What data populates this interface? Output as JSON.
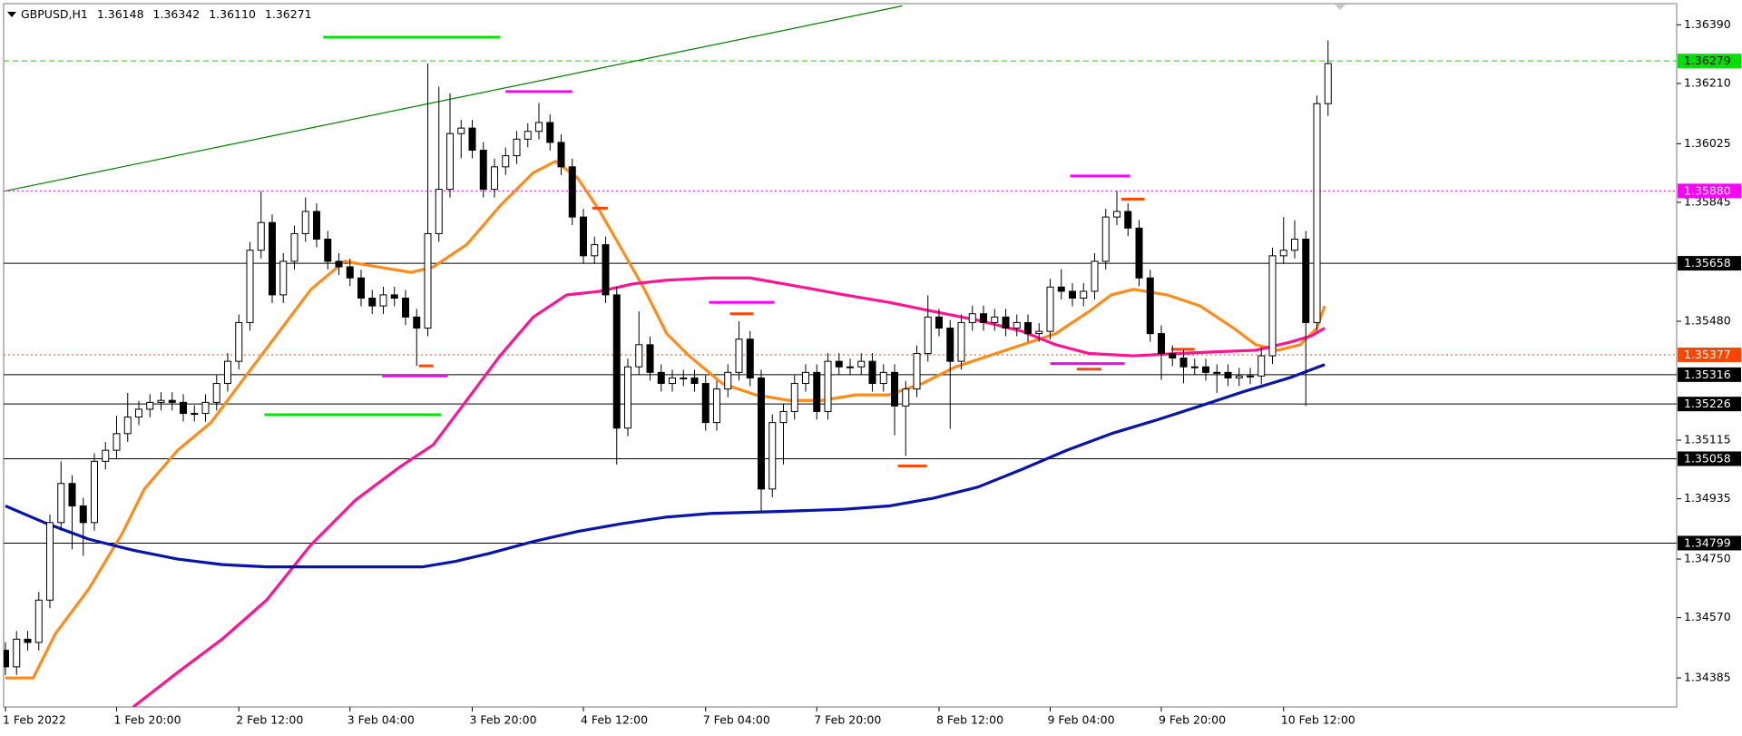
{
  "chart_data": {
    "type": "candlestick",
    "symbol": "GBPUSD,H1",
    "header": {
      "values": [
        1.36148,
        1.36342,
        1.3611,
        1.36271
      ],
      "value_labels": [
        "1.36148",
        "1.36342",
        "1.36110",
        "1.36271"
      ]
    },
    "categories": [
      "1 Feb 2022",
      null,
      null,
      null,
      null,
      null,
      null,
      null,
      null,
      null,
      "1 Feb 20:00",
      null,
      null,
      null,
      null,
      null,
      null,
      null,
      null,
      null,
      null,
      "2 Feb 12:00",
      null,
      null,
      null,
      null,
      null,
      null,
      null,
      null,
      null,
      "3 Feb 04:00",
      null,
      null,
      null,
      null,
      null,
      null,
      null,
      null,
      null,
      null,
      "3 Feb 20:00",
      null,
      null,
      null,
      null,
      null,
      null,
      null,
      null,
      null,
      "4 Feb 12:00",
      null,
      null,
      null,
      null,
      null,
      null,
      null,
      null,
      null,
      null,
      "7 Feb 04:00",
      null,
      null,
      null,
      null,
      null,
      null,
      null,
      null,
      null,
      "7 Feb 20:00",
      null,
      null,
      null,
      null,
      null,
      null,
      null,
      null,
      null,
      null,
      "8 Feb 12:00",
      null,
      null,
      null,
      null,
      null,
      null,
      null,
      null,
      null,
      "9 Feb 04:00",
      null,
      null,
      null,
      null,
      null,
      null,
      null,
      null,
      null,
      "9 Feb 20:00",
      null,
      null,
      null,
      null,
      null,
      null,
      null,
      null,
      null,
      null,
      "10 Feb 12:00",
      null,
      null,
      null,
      null
    ],
    "open": [
      1.3447,
      1.34419,
      1.34504,
      1.34494,
      1.34624,
      1.34862,
      1.34982,
      1.34913,
      1.34862,
      1.3505,
      1.35084,
      1.35135,
      1.35186,
      1.3521,
      1.35231,
      1.35237,
      1.35231,
      1.35197,
      1.35197,
      1.35231,
      1.35289,
      1.35357,
      1.35476,
      1.35698,
      1.35783,
      1.35561,
      1.35664,
      1.35749,
      1.35817,
      1.35732,
      1.35664,
      1.35647,
      1.35613,
      1.35551,
      1.35527,
      1.35561,
      1.35551,
      1.35493,
      1.35459,
      1.35749,
      1.35885,
      1.36056,
      1.36073,
      1.36005,
      1.35885,
      1.35954,
      1.35988,
      1.36039,
      1.36063,
      1.3609,
      1.36029,
      1.35954,
      1.358,
      1.35681,
      1.35715,
      1.35561,
      1.35152,
      1.3534,
      1.35408,
      1.35323,
      1.35289,
      1.35306,
      1.35306,
      1.35289,
      1.35169,
      1.35272,
      1.35323,
      1.35425,
      1.35306,
      1.34965,
      1.35169,
      1.35203,
      1.35289,
      1.35323,
      1.35203,
      1.35357,
      1.3534,
      1.3534,
      1.35357,
      1.35289,
      1.35323,
      1.3522,
      1.35272,
      1.35381,
      1.35493,
      1.35459,
      1.35357,
      1.35476,
      1.35503,
      1.35476,
      1.35493,
      1.35459,
      1.35476,
      1.35442,
      1.35449,
      1.35585,
      1.35572,
      1.35551,
      1.35572,
      1.35664,
      1.358,
      1.35817,
      1.35766,
      1.35613,
      1.35442,
      1.35381,
      1.35367,
      1.3534,
      1.3534,
      1.35323,
      1.35323,
      1.35306,
      1.35312,
      1.35312,
      1.35374,
      1.35681,
      1.35698,
      1.35732,
      1.35476,
      1.36148
    ],
    "high": [
      1.34495,
      1.34529,
      1.34529,
      1.34649,
      1.34887,
      1.3505,
      1.35007,
      1.34938,
      1.35075,
      1.35109,
      1.3519,
      1.3526,
      1.35235,
      1.35256,
      1.35262,
      1.35262,
      1.35256,
      1.35222,
      1.35256,
      1.35314,
      1.35382,
      1.35501,
      1.35723,
      1.3588,
      1.35808,
      1.35689,
      1.35774,
      1.3586,
      1.35842,
      1.35757,
      1.35689,
      1.35672,
      1.35638,
      1.35576,
      1.35586,
      1.35586,
      1.35576,
      1.35518,
      1.36271,
      1.362,
      1.3618,
      1.36098,
      1.36098,
      1.3603,
      1.35979,
      1.36013,
      1.36064,
      1.36088,
      1.3615,
      1.36115,
      1.36054,
      1.35979,
      1.35825,
      1.3574,
      1.3574,
      1.35586,
      1.35365,
      1.3551,
      1.35433,
      1.35348,
      1.35331,
      1.35331,
      1.35331,
      1.35314,
      1.35297,
      1.35348,
      1.3548,
      1.3545,
      1.35331,
      1.35194,
      1.35228,
      1.35314,
      1.35348,
      1.35348,
      1.35382,
      1.35382,
      1.35365,
      1.35382,
      1.35382,
      1.35348,
      1.35348,
      1.35297,
      1.35406,
      1.3556,
      1.35518,
      1.35484,
      1.35501,
      1.35528,
      1.35528,
      1.35518,
      1.35518,
      1.35501,
      1.35501,
      1.35474,
      1.3561,
      1.3564,
      1.35597,
      1.35597,
      1.35689,
      1.35825,
      1.3588,
      1.35842,
      1.35791,
      1.35638,
      1.35467,
      1.35406,
      1.35392,
      1.35365,
      1.35365,
      1.35348,
      1.35348,
      1.35337,
      1.35337,
      1.35399,
      1.35706,
      1.358,
      1.3579,
      1.35757,
      1.36173,
      1.36342
    ],
    "low": [
      1.34394,
      1.34394,
      1.34469,
      1.34469,
      1.34599,
      1.34837,
      1.3478,
      1.3476,
      1.34837,
      1.35025,
      1.35059,
      1.3511,
      1.35161,
      1.35185,
      1.35206,
      1.35206,
      1.35172,
      1.35172,
      1.35172,
      1.35206,
      1.35264,
      1.35332,
      1.35451,
      1.35673,
      1.35536,
      1.35536,
      1.35639,
      1.35724,
      1.35707,
      1.35639,
      1.35622,
      1.35588,
      1.35526,
      1.35502,
      1.35502,
      1.35526,
      1.35468,
      1.35343,
      1.35434,
      1.35724,
      1.3586,
      1.3598,
      1.3598,
      1.3586,
      1.3586,
      1.35929,
      1.35963,
      1.36014,
      1.36038,
      1.36004,
      1.35929,
      1.35775,
      1.35656,
      1.35656,
      1.35536,
      1.3504,
      1.35127,
      1.35315,
      1.35298,
      1.35264,
      1.35264,
      1.35281,
      1.35264,
      1.35144,
      1.35144,
      1.35247,
      1.35298,
      1.35281,
      1.34896,
      1.3494,
      1.3504,
      1.35178,
      1.35264,
      1.35178,
      1.35178,
      1.35315,
      1.35315,
      1.35315,
      1.35264,
      1.35264,
      1.3513,
      1.35067,
      1.35247,
      1.35356,
      1.35434,
      1.3515,
      1.35332,
      1.35451,
      1.35451,
      1.35451,
      1.35434,
      1.35434,
      1.35417,
      1.35417,
      1.35424,
      1.35547,
      1.35526,
      1.35526,
      1.35547,
      1.35639,
      1.35775,
      1.35741,
      1.35588,
      1.35417,
      1.353,
      1.35342,
      1.3529,
      1.35315,
      1.35298,
      1.3526,
      1.35281,
      1.35281,
      1.35287,
      1.35287,
      1.35349,
      1.35656,
      1.35673,
      1.3522,
      1.35451,
      1.3611
    ],
    "close": [
      1.34419,
      1.34504,
      1.34494,
      1.34624,
      1.34862,
      1.34982,
      1.34913,
      1.34862,
      1.3505,
      1.35084,
      1.35135,
      1.35186,
      1.3521,
      1.35231,
      1.35237,
      1.35231,
      1.35197,
      1.35197,
      1.35231,
      1.35289,
      1.35357,
      1.35476,
      1.35698,
      1.35783,
      1.35561,
      1.35664,
      1.35749,
      1.35817,
      1.35732,
      1.35664,
      1.35647,
      1.35613,
      1.35551,
      1.35527,
      1.35561,
      1.35551,
      1.35493,
      1.35459,
      1.35749,
      1.35885,
      1.36056,
      1.36073,
      1.36005,
      1.35885,
      1.35954,
      1.35988,
      1.36039,
      1.36063,
      1.3609,
      1.36029,
      1.35954,
      1.358,
      1.35681,
      1.35715,
      1.35561,
      1.35152,
      1.3534,
      1.35408,
      1.35323,
      1.35289,
      1.35306,
      1.35306,
      1.35289,
      1.35169,
      1.35272,
      1.35323,
      1.35425,
      1.35306,
      1.34965,
      1.35169,
      1.35203,
      1.35289,
      1.35323,
      1.35203,
      1.35357,
      1.3534,
      1.3534,
      1.35357,
      1.35289,
      1.35323,
      1.3522,
      1.35272,
      1.35381,
      1.35493,
      1.35459,
      1.35357,
      1.35476,
      1.35503,
      1.35476,
      1.35493,
      1.35459,
      1.35476,
      1.35442,
      1.35449,
      1.35585,
      1.35572,
      1.35551,
      1.35572,
      1.35664,
      1.358,
      1.35817,
      1.35766,
      1.35613,
      1.35442,
      1.35381,
      1.35367,
      1.3534,
      1.3534,
      1.35323,
      1.35323,
      1.35306,
      1.35312,
      1.35312,
      1.35374,
      1.35681,
      1.35698,
      1.35732,
      1.35476,
      1.36148,
      1.36271
    ],
    "up_color": "#ffffff",
    "down_color": "#000000",
    "ylim": [
      1.34296,
      1.36455
    ],
    "yticks": [
      {
        "value": 1.3639,
        "label": "1.36390"
      },
      {
        "value": 1.3621,
        "label": "1.36210"
      },
      1.36025,
      1.35845,
      {
        "value": 1.3548,
        "label": "1.35480"
      },
      1.35115,
      1.34935,
      {
        "value": 1.3475,
        "label": "1.34750"
      },
      {
        "value": 1.3457,
        "label": "1.34570"
      },
      1.34385
    ],
    "moving_averages": [
      {
        "color": "#ff8c1a",
        "x": [
          0,
          2.5,
          4.5,
          7.5,
          10.5,
          12.5,
          15.5,
          18.5,
          21.5,
          24.5,
          27.5,
          30.5,
          33.5,
          36.5,
          38.5,
          41.5,
          44.5,
          47.5,
          49.5,
          51.5,
          53.5,
          55.5,
          57.5,
          59.5,
          61.5,
          64.5,
          67.5,
          70.5,
          73.5,
          76.5,
          79.5,
          82.5,
          85.5,
          88.5,
          91.5,
          94.5,
          97.5,
          99.5,
          101.5,
          104.5,
          107.5,
          110.5,
          112.5,
          114.5,
          116.5,
          118,
          118.7
        ],
        "values": [
          1.34385,
          1.34385,
          1.34521,
          1.34658,
          1.34828,
          1.34965,
          1.35084,
          1.35169,
          1.35306,
          1.35442,
          1.35578,
          1.35664,
          1.35647,
          1.3563,
          1.35647,
          1.35715,
          1.35834,
          1.35936,
          1.35971,
          1.35919,
          1.35817,
          1.35698,
          1.35578,
          1.35442,
          1.35374,
          1.35289,
          1.35254,
          1.35237,
          1.35237,
          1.35254,
          1.35254,
          1.35289,
          1.3534,
          1.35374,
          1.35408,
          1.35442,
          1.3551,
          1.35561,
          1.35578,
          1.35561,
          1.35527,
          1.35459,
          1.35408,
          1.35391,
          1.35408,
          1.35459,
          1.35527
        ]
      },
      {
        "color": "#ff1493",
        "x": [
          11.5,
          15.5,
          19.5,
          23.5,
          27.5,
          31.5,
          35.5,
          38.5,
          41.5,
          44.5,
          47.5,
          50.5,
          53.5,
          56.5,
          59.5,
          63.5,
          67,
          70.5,
          75.5,
          79.5,
          83.5,
          87.5,
          91.5,
          94.5,
          97.5,
          101.5,
          105.5,
          109.5,
          112.5,
          115.5,
          117.5,
          118.7
        ],
        "values": [
          1.34296,
          1.34402,
          1.34504,
          1.34624,
          1.34794,
          1.34931,
          1.35033,
          1.35101,
          1.35237,
          1.35374,
          1.35493,
          1.35561,
          1.35572,
          1.35595,
          1.35606,
          1.35613,
          1.35613,
          1.35592,
          1.35561,
          1.35538,
          1.3551,
          1.35483,
          1.35449,
          1.35408,
          1.35381,
          1.35374,
          1.35381,
          1.35387,
          1.35391,
          1.35415,
          1.35435,
          1.35459
        ]
      },
      {
        "color": "#0a14a8",
        "x": [
          0,
          3.5,
          7.5,
          11.5,
          15.5,
          19.5,
          23.5,
          29.5,
          37.5,
          40.5,
          43.5,
          47.5,
          51.5,
          55.5,
          59.5,
          63.5,
          69.5,
          75.5,
          79.5,
          83.5,
          87.5,
          91.5,
          95.5,
          99.5,
          103.5,
          107.5,
          111.5,
          115.5,
          118.7
        ],
        "values": [
          1.34913,
          1.34862,
          1.34811,
          1.34777,
          1.3475,
          1.34733,
          1.34726,
          1.34726,
          1.34726,
          1.34743,
          1.34767,
          1.34804,
          1.34835,
          1.34859,
          1.34879,
          1.3489,
          1.34896,
          1.34903,
          1.34913,
          1.34937,
          1.34971,
          1.35026,
          1.35084,
          1.35135,
          1.35176,
          1.3522,
          1.35265,
          1.35306,
          1.35347
        ]
      }
    ],
    "levels": [
      {
        "value": 1.36279,
        "color": "#00e000",
        "text_color": "#000000",
        "style": "dashed"
      },
      {
        "value": 1.3588,
        "label": "1.35880",
        "color": "#ff00ff",
        "text_color": "#ffffff",
        "style": "dotted"
      },
      {
        "value": 1.35658,
        "color": "#000000",
        "text_color": "#ffffff",
        "style": "solid"
      },
      {
        "value": 1.35377,
        "color": "#ff4500",
        "text_color": "#ffffff",
        "style": "dotted"
      },
      {
        "value": 1.35316,
        "color": "#000000",
        "text_color": "#ffffff",
        "style": "solid"
      },
      {
        "value": 1.35226,
        "color": "#000000",
        "text_color": "#ffffff",
        "style": "solid"
      },
      {
        "value": 1.35058,
        "color": "#000000",
        "text_color": "#ffffff",
        "style": "solid"
      },
      {
        "value": 1.34799,
        "color": "#000000",
        "text_color": "#ffffff",
        "style": "solid"
      }
    ],
    "trendline": {
      "color": "#008000",
      "x": [
        0,
        80.7
      ],
      "values": [
        1.3588,
        1.36448
      ]
    },
    "marks": [
      {
        "color": "#00e600",
        "x": [
          28.6,
          44.5
        ],
        "value": 1.36352
      },
      {
        "color": "#00e600",
        "x": [
          23.3,
          39.2
        ],
        "value": 1.35193
      },
      {
        "color": "#ff00ff",
        "x": [
          45,
          51
        ],
        "value": 1.36185
      },
      {
        "color": "#ff00ff",
        "x": [
          33.9,
          39.8
        ],
        "value": 1.35312
      },
      {
        "color": "#ff00ff",
        "x": [
          63.3,
          69.2
        ],
        "value": 1.35538
      },
      {
        "color": "#ff00ff",
        "x": [
          95.8,
          101.2
        ],
        "value": 1.35926
      },
      {
        "color": "#ff00ff",
        "x": [
          94,
          100.7
        ],
        "value": 1.3535
      },
      {
        "color": "#ff4500",
        "x": [
          37.2,
          38.5
        ],
        "value": 1.35343
      },
      {
        "color": "#ff4500",
        "x": [
          52.8,
          54.2
        ],
        "value": 1.35827
      },
      {
        "color": "#ff4500",
        "x": [
          65.2,
          67.3
        ],
        "value": 1.35503
      },
      {
        "color": "#ff4500",
        "x": [
          100.4,
          102.5
        ],
        "value": 1.35855
      },
      {
        "color": "#ff4500",
        "x": [
          80.3,
          82.9
        ],
        "value": 1.35036
      },
      {
        "color": "#ff4500",
        "x": [
          96.4,
          98.6
        ],
        "value": 1.35333
      },
      {
        "color": "#ff4500",
        "x": [
          104.9,
          107
        ],
        "value": 1.35394
      }
    ]
  }
}
